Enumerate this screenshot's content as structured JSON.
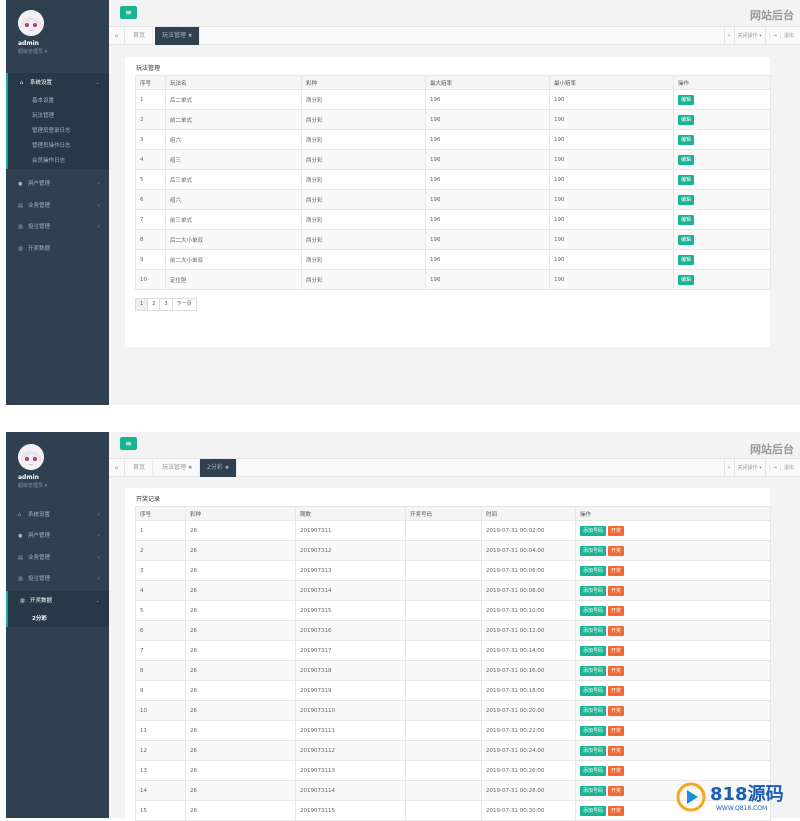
{
  "header": {
    "menu_icon": "bars-icon",
    "site_title": "网站后台"
  },
  "user": {
    "name": "admin",
    "role": "超级管理员 ▾"
  },
  "panel1": {
    "sidebar": {
      "items": [
        {
          "label": "系统设置",
          "icon": "home-icon",
          "arrow": "⌄"
        },
        {
          "label": "用户管理",
          "icon": "user-icon",
          "arrow": "‹"
        },
        {
          "label": "业务管理",
          "icon": "file-icon",
          "arrow": "‹"
        },
        {
          "label": "投注管理",
          "icon": "chart-icon",
          "arrow": "‹"
        },
        {
          "label": "开奖数据",
          "icon": "chart-icon",
          "arrow": ""
        }
      ],
      "sub_items": [
        "基本设置",
        "玩法管理",
        "管理员登录日志",
        "管理员操作日志",
        "会员操作日志"
      ]
    },
    "tabs": {
      "home": "首页",
      "active": "玩法管理",
      "close_ops": "关闭操作 ▾",
      "logout": "退出"
    },
    "card_title": "玩法管理",
    "columns": [
      "序号",
      "玩法名",
      "彩种",
      "最大赔率",
      "最小赔率",
      "操作"
    ],
    "rows": [
      [
        "1",
        "后二单式",
        "两分彩",
        "196",
        "190"
      ],
      [
        "2",
        "前二单式",
        "两分彩",
        "196",
        "190"
      ],
      [
        "3",
        "组六",
        "两分彩",
        "196",
        "190"
      ],
      [
        "4",
        "组三",
        "两分彩",
        "196",
        "190"
      ],
      [
        "5",
        "后三单式",
        "两分彩",
        "196",
        "190"
      ],
      [
        "6",
        "组六",
        "两分彩",
        "196",
        "190"
      ],
      [
        "7",
        "前三单式",
        "两分彩",
        "196",
        "190"
      ],
      [
        "8",
        "后二大小单双",
        "两分彩",
        "196",
        "190"
      ],
      [
        "9",
        "前二大小单双",
        "两分彩",
        "196",
        "190"
      ],
      [
        "10",
        "定位胆",
        "两分彩",
        "196",
        "190"
      ]
    ],
    "edit_label": "编辑",
    "pager": [
      "1",
      "2",
      "3",
      "下一页"
    ]
  },
  "panel2": {
    "sidebar": {
      "items": [
        {
          "label": "系统设置",
          "icon": "home-icon",
          "arrow": "‹"
        },
        {
          "label": "用户管理",
          "icon": "user-icon",
          "arrow": "‹"
        },
        {
          "label": "业务管理",
          "icon": "file-icon",
          "arrow": "‹"
        },
        {
          "label": "投注管理",
          "icon": "chart-icon",
          "arrow": "‹"
        },
        {
          "label": "开奖数据",
          "icon": "chart-icon",
          "arrow": "⌄"
        }
      ],
      "sub_items": [
        "2分彩"
      ]
    },
    "tabs": {
      "home": "首页",
      "second": "玩法管理",
      "active": "2分彩",
      "close_ops": "关闭操作 ▾",
      "logout": "退出"
    },
    "card_title": "开奖记录",
    "columns": [
      "序号",
      "彩种",
      "期数",
      "开奖号码",
      "时间",
      "操作"
    ],
    "rows": [
      [
        "1",
        "26",
        "201907311",
        "",
        "2019-07-31 00:02:00"
      ],
      [
        "2",
        "26",
        "201907312",
        "",
        "2019-07-31 00:04:00"
      ],
      [
        "3",
        "26",
        "201907313",
        "",
        "2019-07-31 00:06:00"
      ],
      [
        "4",
        "26",
        "201907314",
        "",
        "2019-07-31 00:08:00"
      ],
      [
        "5",
        "26",
        "201907315",
        "",
        "2019-07-31 00:10:00"
      ],
      [
        "6",
        "26",
        "201907316",
        "",
        "2019-07-31 00:12:00"
      ],
      [
        "7",
        "26",
        "201907317",
        "",
        "2019-07-31 00:14:00"
      ],
      [
        "8",
        "26",
        "201907318",
        "",
        "2019-07-31 00:16:00"
      ],
      [
        "9",
        "26",
        "201907319",
        "",
        "2019-07-31 00:18:00"
      ],
      [
        "10",
        "26",
        "2019073110",
        "",
        "2019-07-31 00:20:00"
      ],
      [
        "11",
        "26",
        "2019073111",
        "",
        "2019-07-31 00:22:00"
      ],
      [
        "12",
        "26",
        "2019073112",
        "",
        "2019-07-31 00:24:00"
      ],
      [
        "13",
        "26",
        "2019073113",
        "",
        "2019-07-31 00:26:00"
      ],
      [
        "14",
        "26",
        "2019073114",
        "",
        "2019-07-31 00:28:00"
      ],
      [
        "15",
        "26",
        "2019073115",
        "",
        "2019-07-31 00:30:00"
      ]
    ],
    "add_label": "添加号码",
    "draw_label": "开奖"
  },
  "watermark": {
    "brand": "818源码",
    "url": "WWW.Q818.COM"
  },
  "colors": {
    "sidebar": "#2f4050",
    "accent": "#1ab394",
    "danger": "#f06a33"
  }
}
